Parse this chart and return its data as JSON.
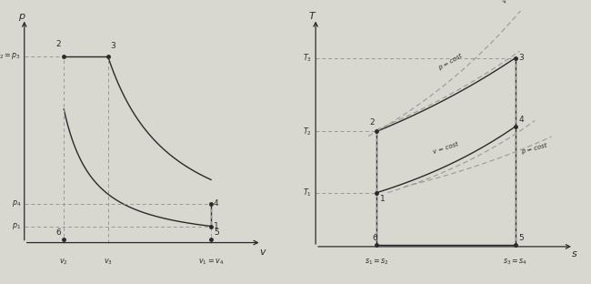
{
  "bg_color": "#d8d8d0",
  "plot_bg": "#e8e8e0",
  "line_color": "#2a2a2a",
  "dashed_color": "#999999",
  "pv": {
    "points": {
      "1": [
        8.5,
        0.22
      ],
      "2": [
        1.8,
        2.5
      ],
      "3": [
        3.8,
        2.5
      ],
      "4": [
        8.5,
        0.52
      ],
      "5": [
        8.5,
        0.04
      ],
      "6": [
        1.8,
        0.04
      ]
    },
    "xlim": [
      -0.3,
      11.0
    ],
    "ylim": [
      -0.25,
      3.1
    ],
    "gamma": 1.35
  },
  "ts": {
    "points": {
      "1": [
        2.2,
        1.1
      ],
      "2": [
        2.2,
        2.35
      ],
      "3": [
        7.2,
        3.85
      ],
      "4": [
        7.2,
        2.45
      ],
      "5": [
        7.2,
        0.04
      ],
      "6": [
        2.2,
        0.04
      ]
    },
    "xlim": [
      -0.3,
      9.5
    ],
    "ylim": [
      -0.3,
      4.8
    ]
  }
}
